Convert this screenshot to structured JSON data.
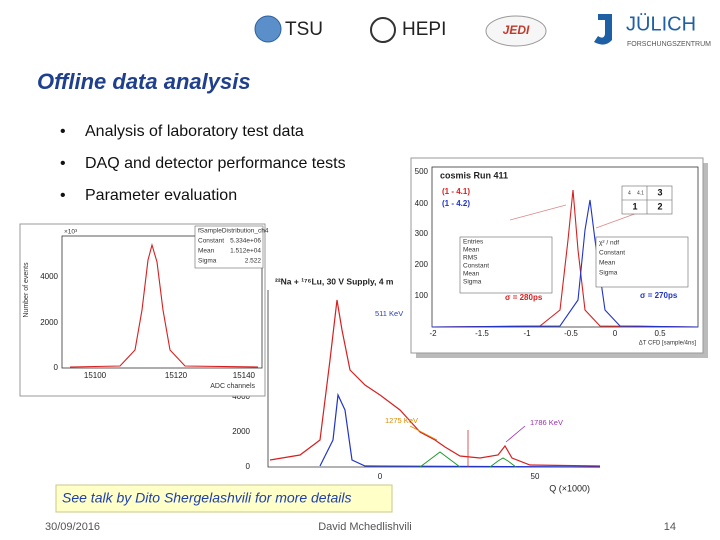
{
  "header": {
    "logos": [
      "TSU",
      "HEPI",
      "JEDI",
      "JÜLICH",
      "FORSCHUNGSZENTRUM"
    ]
  },
  "title": "Offline data analysis",
  "bullets": [
    "Analysis of laboratory test data",
    "DAQ and detector performance tests",
    "Parameter evaluation"
  ],
  "figures": {
    "adc": {
      "title": "fSampleDistribution_ch4",
      "exponent": "×10³",
      "y_label": "Number of events",
      "x_label": "ADC channels",
      "yticks": [
        4000,
        2000,
        0
      ],
      "xticks": [
        15100,
        15120,
        15140
      ],
      "stats": [
        [
          "Constant",
          "5.334e+06"
        ],
        [
          "Mean",
          "1.512e+04"
        ],
        [
          "Sigma",
          "2.522"
        ]
      ]
    },
    "spectrum": {
      "title": "²²Na + ¹⁷⁶Lu, 30 V Supply, 4 m",
      "x_label": "Q (×1000)",
      "yticks": [
        4000,
        2000,
        0
      ],
      "xticks": [
        0,
        50
      ],
      "annotations": [
        "511 KeV",
        "1275 KeV",
        "1786 KeV"
      ]
    },
    "timing": {
      "title": "cosmis  Run 411",
      "legend": [
        "(1 - 4.1)",
        "(1 - 4.2)"
      ],
      "grid": [
        "4",
        "4.1",
        "3",
        "1",
        "2"
      ],
      "stats_labels": [
        "Entries",
        "Mean",
        "RMS",
        "Constant",
        "Mean",
        "Sigma"
      ],
      "fit_labels": [
        "χ² / ndf",
        "Constant",
        "Mean",
        "Sigma"
      ],
      "sigma_red": "σ = 280ps",
      "sigma_blue": "σ = 270ps",
      "yticks": [
        500,
        400,
        300,
        200,
        100
      ],
      "xticks": [
        -2,
        -1.5,
        -1,
        -0.5,
        0,
        0.5
      ],
      "x_label": "ΔT CFD [sample/4ns]"
    }
  },
  "note": "See talk by Dito Shergelashvili for more details",
  "footer": {
    "date": "30/09/2016",
    "author": "David Mchedlishvili",
    "page": 14
  }
}
